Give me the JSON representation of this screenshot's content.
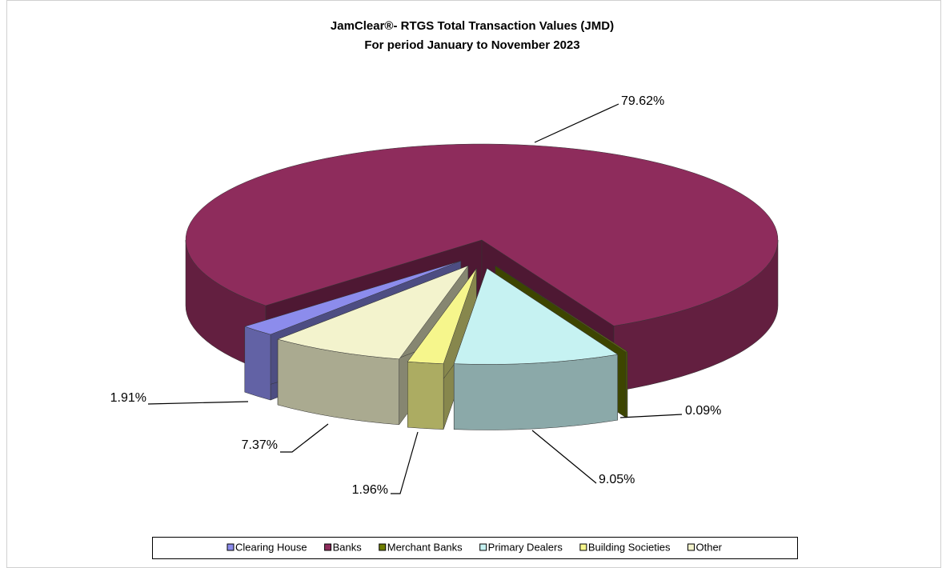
{
  "chart_data": {
    "type": "pie3d",
    "title": "JamClear®- RTGS Total Transaction Values (JMD)",
    "subtitle": "For period January to November 2023",
    "categories": [
      "Clearing House",
      "Banks",
      "Merchant Banks",
      "Primary Dealers",
      "Building Societies",
      "Other"
    ],
    "values": [
      1.91,
      79.62,
      0.09,
      9.05,
      1.96,
      7.37
    ],
    "value_labels": [
      "1.91%",
      "79.62%",
      "0.09%",
      "9.05%",
      "1.96%",
      "7.37%"
    ],
    "colors": [
      "#8c8cec",
      "#8e2c5c",
      "#6e7d00",
      "#c6f2f2",
      "#f6f68c",
      "#f3f3cd"
    ],
    "exploded": [
      true,
      false,
      true,
      true,
      true,
      true
    ],
    "legend": "bottom"
  }
}
